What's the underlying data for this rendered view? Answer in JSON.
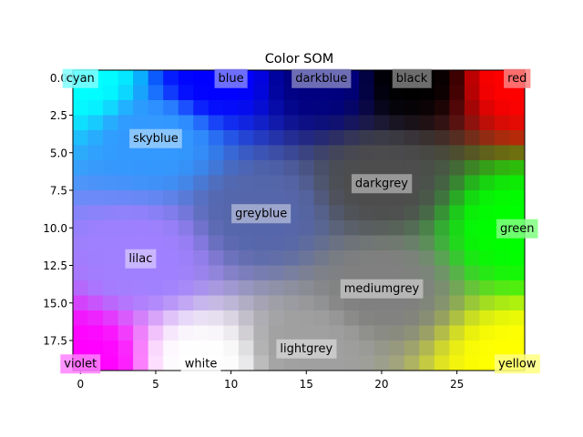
{
  "chart_data": {
    "type": "heatmap",
    "title": "Color SOM",
    "xlabel": "",
    "ylabel": "",
    "grid": false,
    "grid_size": {
      "cols": 30,
      "rows": 20
    },
    "xlim": [
      -0.5,
      29.5
    ],
    "ylim": [
      19.5,
      -0.5
    ],
    "x_ticks": [
      0,
      5,
      10,
      15,
      20,
      25
    ],
    "x_tick_labels": [
      "0",
      "5",
      "10",
      "15",
      "20",
      "25"
    ],
    "y_ticks": [
      0,
      2.5,
      5,
      7.5,
      10,
      12.5,
      15,
      17.5
    ],
    "y_tick_labels": [
      "0.0",
      "2.5",
      "5.0",
      "7.5",
      "10.0",
      "12.5",
      "15.0",
      "17.5"
    ],
    "color_anchors": [
      {
        "x": 0,
        "y": 0,
        "color": "#00ffff"
      },
      {
        "x": 9,
        "y": 0,
        "color": "#0000ff"
      },
      {
        "x": 16,
        "y": 0,
        "color": "#000080"
      },
      {
        "x": 22,
        "y": 0,
        "color": "#000000"
      },
      {
        "x": 29,
        "y": 0,
        "color": "#ff0000"
      },
      {
        "x": 5,
        "y": 4,
        "color": "#3399ff"
      },
      {
        "x": 20,
        "y": 7,
        "color": "#4d4d4d"
      },
      {
        "x": 12,
        "y": 9,
        "color": "#5566aa"
      },
      {
        "x": 29,
        "y": 10,
        "color": "#00ff00"
      },
      {
        "x": 4,
        "y": 12,
        "color": "#a080ff"
      },
      {
        "x": 20,
        "y": 14,
        "color": "#808080"
      },
      {
        "x": 15,
        "y": 18,
        "color": "#a0a0a0"
      },
      {
        "x": 0,
        "y": 19,
        "color": "#ff00ff"
      },
      {
        "x": 8,
        "y": 19,
        "color": "#ffffff"
      },
      {
        "x": 29,
        "y": 19,
        "color": "#ffff00"
      }
    ],
    "annotations": [
      {
        "text": "cyan",
        "x": 0,
        "y": 0,
        "bg": "#80ffff"
      },
      {
        "text": "blue",
        "x": 10,
        "y": 0,
        "bg": "#8080ff"
      },
      {
        "text": "darkblue",
        "x": 16,
        "y": 0,
        "bg": "#8080c0"
      },
      {
        "text": "black",
        "x": 22,
        "y": 0,
        "bg": "#808080"
      },
      {
        "text": "red",
        "x": 29,
        "y": 0,
        "bg": "#ff8080"
      },
      {
        "text": "skyblue",
        "x": 5,
        "y": 4,
        "bg": "#99ccff"
      },
      {
        "text": "darkgrey",
        "x": 20,
        "y": 7,
        "bg": "#a6a6a6"
      },
      {
        "text": "greyblue",
        "x": 12,
        "y": 9,
        "bg": "#aab3d5"
      },
      {
        "text": "green",
        "x": 29,
        "y": 10,
        "bg": "#80ff80"
      },
      {
        "text": "lilac",
        "x": 4,
        "y": 12,
        "bg": "#d0c0ff"
      },
      {
        "text": "mediumgrey",
        "x": 20,
        "y": 14,
        "bg": "#c0c0c0"
      },
      {
        "text": "lightgrey",
        "x": 15,
        "y": 18,
        "bg": "#d0d0d0"
      },
      {
        "text": "violet",
        "x": 0,
        "y": 19,
        "bg": "#ff80ff"
      },
      {
        "text": "white",
        "x": 8,
        "y": 19,
        "bg": "#ffffff"
      },
      {
        "text": "yellow",
        "x": 29,
        "y": 19,
        "bg": "#ffff80"
      }
    ]
  }
}
